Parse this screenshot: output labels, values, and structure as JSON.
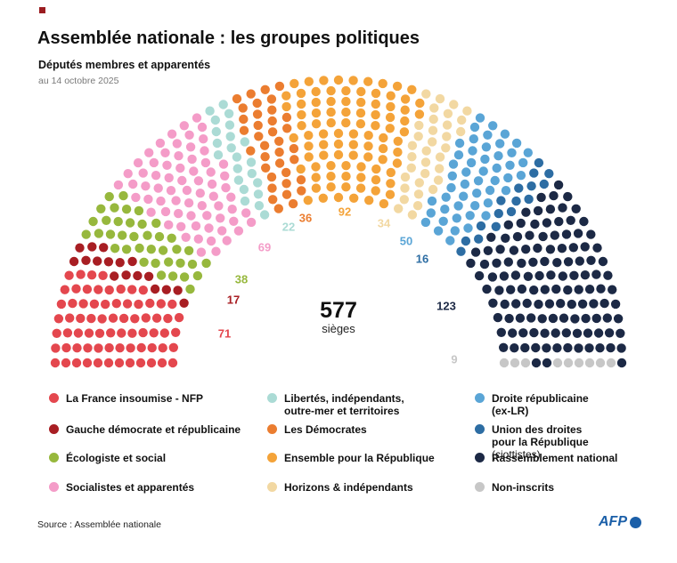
{
  "header": {
    "title": "Assemblée nationale : les groupes politiques",
    "subtitle": "Députés membres et apparentés",
    "date": "au 14 octobre 2025"
  },
  "center": {
    "total": "577",
    "unit": "sièges"
  },
  "footer": {
    "source": "Source : Assemblée nationale",
    "logo": "AFP"
  },
  "colors": {
    "corner_mark": "#9b1c20",
    "afp_blue": "#1b5fa8"
  },
  "chart_data": {
    "type": "parliament",
    "title": "Assemblée nationale : les groupes politiques",
    "total_seats": 577,
    "rows": 12,
    "legend_position": "bottom",
    "parties": [
      {
        "name": "La France insoumise - NFP",
        "seats": 71,
        "color": "#e4474e",
        "legend": {
          "line1": "La France insoumise - NFP"
        }
      },
      {
        "name": "Gauche démocrate et républicaine",
        "seats": 17,
        "color": "#a81e23",
        "legend": {
          "line1": "Gauche démocrate et républicaine"
        }
      },
      {
        "name": "Écologiste et social",
        "seats": 38,
        "color": "#97b83d",
        "legend": {
          "line1": "Écologiste et social"
        }
      },
      {
        "name": "Socialistes et apparentés",
        "seats": 69,
        "color": "#f49cc8",
        "legend": {
          "line1": "Socialistes et apparentés"
        }
      },
      {
        "name": "Libertés, indépendants, outre-mer et territoires",
        "seats": 22,
        "color": "#abdbd5",
        "legend": {
          "line1": "Libertés, indépendants,",
          "line2": "outre-mer et territoires"
        }
      },
      {
        "name": "Les Démocrates",
        "seats": 36,
        "color": "#eb7d30",
        "legend": {
          "line1": "Les Démocrates"
        }
      },
      {
        "name": "Ensemble pour la République",
        "seats": 92,
        "color": "#f4a339",
        "legend": {
          "line1": "Ensemble pour la République"
        }
      },
      {
        "name": "Horizons & indépendants",
        "seats": 34,
        "color": "#f2d8a2",
        "legend": {
          "line1": "Horizons & indépendants"
        }
      },
      {
        "name": "Droite républicaine (ex-LR)",
        "seats": 50,
        "color": "#5aa5d6",
        "legend": {
          "line1": "Droite républicaine",
          "line2": "(ex-LR)"
        }
      },
      {
        "name": "Union des droites pour la République (ciottistes)",
        "seats": 16,
        "color": "#2d6da3",
        "legend": {
          "line1": "Union des droites",
          "line2": "pour la République",
          "suffix": "(ciottistes)"
        }
      },
      {
        "name": "Rassemblement national",
        "seats": 123,
        "color": "#1c2945",
        "legend": {
          "line1": "Rassemblement national"
        }
      },
      {
        "name": "Non-inscrits",
        "seats": 9,
        "color": "#c7c7c7",
        "legend": {
          "line1": "Non-inscrits"
        }
      }
    ]
  }
}
